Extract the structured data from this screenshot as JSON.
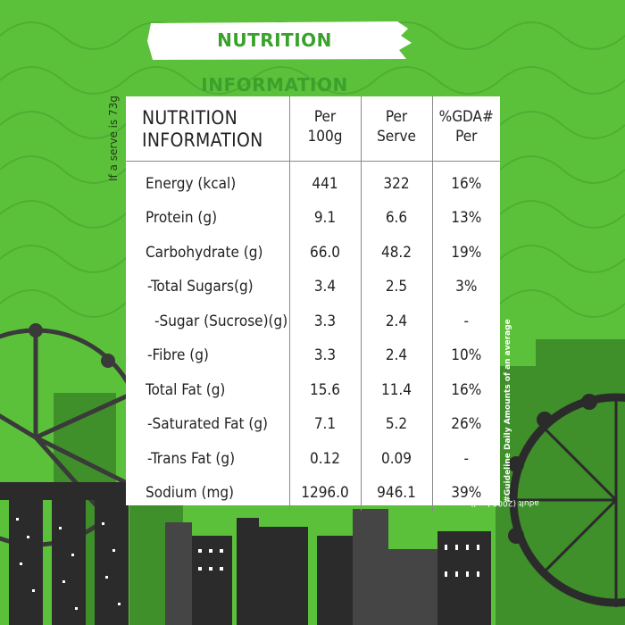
{
  "banner": {
    "title": "NUTRITION INFORMATION"
  },
  "side_notes": {
    "left": "If a serve is 73g",
    "right_bold": "#Guideline Daily Amounts of an average",
    "right_rest": " adult (2000 kcal)."
  },
  "table": {
    "title_lines": [
      "NUTRITION",
      "INFORMATION"
    ],
    "columns": [
      {
        "lines": [
          "Per",
          "100g"
        ]
      },
      {
        "lines": [
          "Per",
          "Serve"
        ]
      },
      {
        "lines": [
          "%GDA#",
          "Per"
        ]
      }
    ],
    "rows": [
      {
        "label": "Energy (kcal)",
        "per_100g": "441",
        "per_serve": "322",
        "gda": "16%"
      },
      {
        "label": "Protein (g)",
        "per_100g": "9.1",
        "per_serve": "6.6",
        "gda": "13%"
      },
      {
        "label": "Carbohydrate (g)",
        "per_100g": "66.0",
        "per_serve": "48.2",
        "gda": "19%"
      },
      {
        "label": "-Total Sugars(g)",
        "per_100g": "3.4",
        "per_serve": "2.5",
        "gda": "3%"
      },
      {
        "label": "-Sugar (Sucrose)(g)",
        "per_100g": "3.3",
        "per_serve": "2.4",
        "gda": "-"
      },
      {
        "label": "-Fibre (g)",
        "per_100g": "3.3",
        "per_serve": "2.4",
        "gda": "10%"
      },
      {
        "label": "Total Fat (g)",
        "per_100g": "15.6",
        "per_serve": "11.4",
        "gda": "16%"
      },
      {
        "label": "-Saturated Fat (g)",
        "per_100g": "7.1",
        "per_serve": "5.2",
        "gda": "26%"
      },
      {
        "label": "-Trans Fat (g)",
        "per_100g": "0.12",
        "per_serve": "0.09",
        "gda": "-"
      },
      {
        "label": "Sodium (mg)",
        "per_100g": "1296.0",
        "per_serve": "946.1",
        "gda": "39%"
      }
    ]
  },
  "colors": {
    "background": "#5cc13a",
    "pattern": "#4fae33",
    "banner_text": "#3aa22c",
    "skyline_dark": "#2b2b2b",
    "skyline_mid": "#454545",
    "skyline_green": "#3f8f2a"
  }
}
